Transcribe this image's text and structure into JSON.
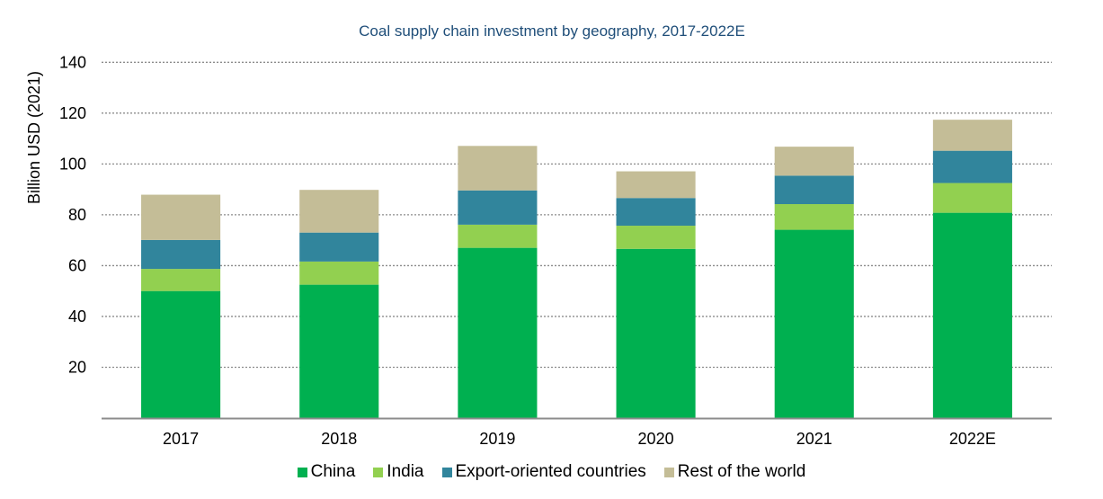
{
  "chart_data": {
    "type": "bar",
    "stacked": true,
    "title": "Coal supply chain investment by geography, 2017-2022E",
    "xlabel": "",
    "ylabel": "Billion USD (2021)",
    "ylim": [
      0,
      140
    ],
    "yticks": [
      20,
      40,
      60,
      80,
      100,
      120,
      140
    ],
    "grid": true,
    "legend_position": "bottom",
    "categories": [
      "2017",
      "2018",
      "2019",
      "2020",
      "2021",
      "2022E"
    ],
    "series": [
      {
        "name": "China",
        "color": "#00b050",
        "values": [
          50,
          52.5,
          67,
          66.6,
          74.1,
          80.8
        ]
      },
      {
        "name": "India",
        "color": "#92d050",
        "values": [
          8.7,
          9.1,
          9.1,
          9.1,
          10.1,
          11.7
        ]
      },
      {
        "name": "Export-oriented countries",
        "color": "#31859c",
        "values": [
          11.4,
          11.4,
          13.5,
          10.9,
          11.2,
          12.7
        ]
      },
      {
        "name": "Rest of the world",
        "color": "#c4bd97",
        "values": [
          17.8,
          16.8,
          17.5,
          10.5,
          11.4,
          12.2
        ]
      }
    ]
  }
}
